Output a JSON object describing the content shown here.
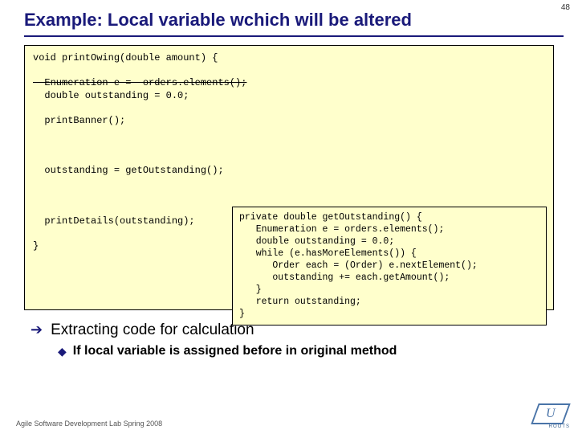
{
  "page_number": "48",
  "title": "Example: Local variable wchich will be altered",
  "code_main": {
    "line1": "void printOwing(double amount) {",
    "blank1": " ",
    "line2_struck": "  Enumeration e =  orders.elements();",
    "line3": "  double outstanding = 0.0;",
    "blank2": " ",
    "line4": "  printBanner();",
    "blank3": " ",
    "blank4": " ",
    "blank5": " ",
    "line5": "  outstanding = getOutstanding();",
    "blank6": " ",
    "blank7": " ",
    "blank8": " ",
    "line6": "  printDetails(outstanding);",
    "blank9": " ",
    "line7": "}"
  },
  "code_inner": {
    "l1": "private double getOutstanding() {",
    "l2": "   Enumeration e = orders.elements();",
    "l3": "   double outstanding = 0.0;",
    "l4": "   while (e.hasMoreElements()) {",
    "l5": "      Order each = (Order) e.nextElement();",
    "l6": "      outstanding += each.getAmount();",
    "l7": "   }",
    "l8": "   return outstanding;",
    "l9": "}"
  },
  "bullet": "Extracting code for calculation",
  "sub_bullet": "If local variable  is assigned before in original method",
  "footer": "Agile Software Development Lab Spring 2008",
  "logo_text": "ROOTS"
}
